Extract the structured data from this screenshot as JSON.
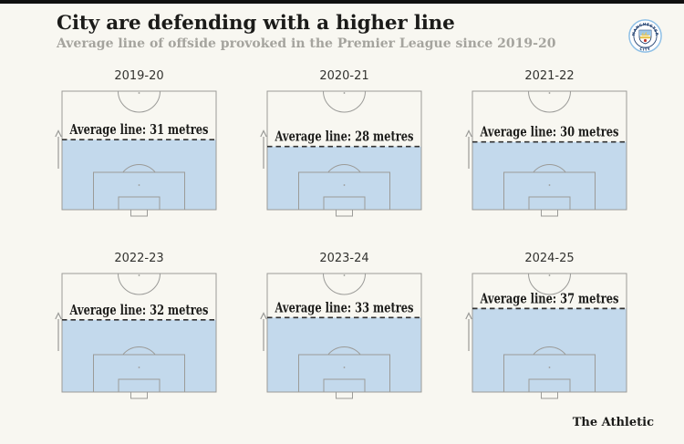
{
  "header": {
    "accent_bar_color": "#101010",
    "title": "City are defending with a higher line",
    "subtitle": "Average line of offside provoked in the Premier League since 2019-20",
    "club_badge_alt": "Manchester City crest",
    "badge_text_top": "MANCHESTER",
    "badge_text_bottom": "CITY"
  },
  "footer": {
    "brand": "The Athletic"
  },
  "chart_data": {
    "type": "pitch_small_multiples",
    "title": "City are defending with a higher line",
    "subtitle": "Average line of offside provoked in the Premier League since 2019-20",
    "unit": "metres",
    "half_pitch_length_m": 52.5,
    "layout": {
      "rows": 2,
      "cols": 3,
      "legend": "none",
      "grid": "off"
    },
    "series": [
      {
        "season": "2019-20",
        "value": 31,
        "label": "Average line: 31 metres"
      },
      {
        "season": "2020-21",
        "value": 28,
        "label": "Average line: 28 metres"
      },
      {
        "season": "2021-22",
        "value": 30,
        "label": "Average line: 30 metres"
      },
      {
        "season": "2022-23",
        "value": 32,
        "label": "Average line: 32 metres"
      },
      {
        "season": "2023-24",
        "value": 33,
        "label": "Average line: 33 metres"
      },
      {
        "season": "2024-25",
        "value": 37,
        "label": "Average line: 37 metres"
      }
    ],
    "colors": {
      "background": "#f8f7f1",
      "shade": "#c3d9ec",
      "pitch_line": "#9b9b98",
      "dashed_line": "#333333",
      "label_text": "#1c1c1a",
      "arrow": "#9a9a97"
    }
  }
}
